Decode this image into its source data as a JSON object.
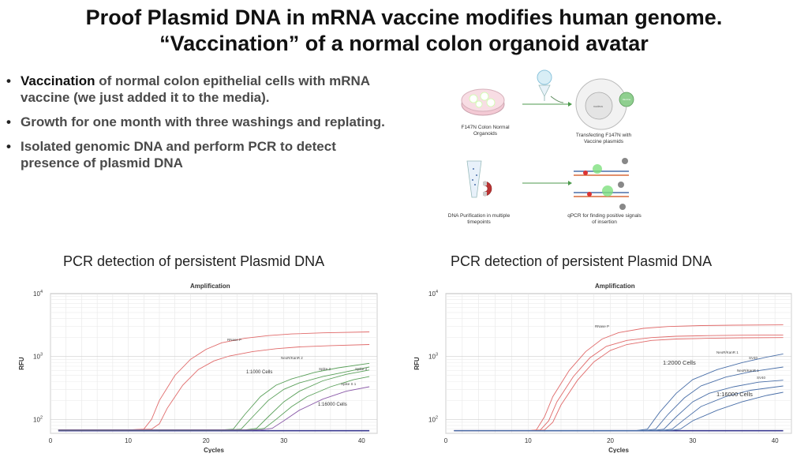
{
  "title_line1": "Proof Plasmid DNA in mRNA vaccine modifies human genome.",
  "title_line2": "“Vaccination” of a normal colon organoid avatar",
  "bullets": [
    {
      "em": "Vaccination",
      "rest": " of normal colon epithelial cells with mRNA vaccine (we just added it to the media)."
    },
    {
      "em": "",
      "rest": "Growth for one month with three washings and replating."
    },
    {
      "em": "",
      "rest": "Isolated genomic DNA and perform PCR to detect presence of plasmid DNA"
    }
  ],
  "diagram": {
    "step1": "F147N Colon Normal Organoids",
    "step2": "Transfecting F147N with Vaccine plasmids",
    "step3": "DNA Purification in multiple timepoints",
    "step4": "qPCR for finding positive signals of insertion",
    "cell_label": "Vaccine",
    "nucleus_label": "nucleus"
  },
  "colors": {
    "red": "#e06a6a",
    "green": "#5aa05a",
    "purple": "#8a5aa8",
    "blue": "#4a6fa8",
    "baseline": "#3a3a90"
  },
  "chart_data": [
    {
      "type": "line",
      "title": "PCR detection of persistent Plasmid DNA",
      "subtitle": "Amplification",
      "xlabel": "Cycles",
      "ylabel": "RFU",
      "yscale": "log",
      "xlim": [
        0,
        42
      ],
      "ylim": [
        60,
        10000
      ],
      "xticks": [
        0,
        10,
        20,
        30,
        40
      ],
      "yticks": [
        100,
        1000,
        10000
      ],
      "ytick_labels": [
        "10^2",
        "10^3",
        "10^4"
      ],
      "grid": true,
      "annotations": [
        "1:1000 Cells",
        "1:16000 Cells"
      ],
      "series": [
        {
          "name": "RNase P",
          "color": "#e06a6a",
          "x": [
            1,
            10,
            12,
            13,
            14,
            16,
            18,
            20,
            22,
            25,
            28,
            31,
            35,
            41
          ],
          "y": [
            68,
            68,
            70,
            100,
            200,
            500,
            900,
            1300,
            1650,
            1950,
            2150,
            2280,
            2380,
            2460
          ]
        },
        {
          "color": "#e06a6a",
          "x": [
            1,
            10,
            13,
            14,
            15,
            17,
            19,
            21,
            23,
            26,
            29,
            32,
            36,
            41
          ],
          "y": [
            68,
            68,
            70,
            85,
            150,
            350,
            620,
            850,
            1020,
            1200,
            1330,
            1420,
            1490,
            1550
          ]
        },
        {
          "name": "Spike 2",
          "color": "#5aa05a",
          "x": [
            1,
            22,
            23.5,
            25,
            27,
            29,
            31,
            34,
            37,
            41
          ],
          "y": [
            68,
            68,
            70,
            120,
            230,
            350,
            440,
            560,
            660,
            780
          ]
        },
        {
          "color": "#5aa05a",
          "x": [
            1,
            23,
            24.5,
            26,
            28,
            30,
            32,
            35,
            38,
            41
          ],
          "y": [
            68,
            68,
            70,
            110,
            200,
            300,
            380,
            480,
            570,
            680
          ]
        },
        {
          "name": "NeoR/KanR 2",
          "color": "#5aa05a",
          "x": [
            1,
            25,
            26.5,
            28,
            30,
            32,
            35,
            38,
            41
          ],
          "y": [
            68,
            68,
            72,
            110,
            190,
            280,
            410,
            520,
            610
          ]
        },
        {
          "name": "Spike 3",
          "color": "#5aa05a",
          "x": [
            1,
            26,
            27.5,
            29,
            31,
            33,
            36,
            39,
            41
          ],
          "y": [
            68,
            68,
            72,
            100,
            160,
            230,
            330,
            430,
            480
          ]
        },
        {
          "name": "Spike S 1",
          "color": "#8a5aa8",
          "x": [
            1,
            27,
            28.5,
            30,
            32,
            35,
            38,
            41
          ],
          "y": [
            68,
            68,
            72,
            95,
            140,
            210,
            280,
            330
          ]
        }
      ]
    },
    {
      "type": "line",
      "title": "PCR detection of persistent Plasmid DNA",
      "subtitle": "Amplification",
      "xlabel": "Cycles",
      "ylabel": "RFU",
      "yscale": "log",
      "xlim": [
        0,
        42
      ],
      "ylim": [
        60,
        10000
      ],
      "xticks": [
        0,
        10,
        20,
        30,
        40
      ],
      "yticks": [
        100,
        1000,
        10000
      ],
      "ytick_labels": [
        "10^2",
        "10^3",
        "10^4"
      ],
      "grid": true,
      "annotations": [
        "1:2000 Cells",
        "1:16000 Cells"
      ],
      "series": [
        {
          "name": "RNase P",
          "color": "#e06a6a",
          "x": [
            1,
            10,
            11,
            12,
            13,
            15,
            17,
            19,
            21,
            24,
            27,
            31,
            35,
            41
          ],
          "y": [
            66,
            66,
            68,
            110,
            230,
            600,
            1200,
            1900,
            2400,
            2800,
            3000,
            3100,
            3150,
            3180
          ]
        },
        {
          "color": "#e06a6a",
          "x": [
            1,
            10,
            11.5,
            12.5,
            13.5,
            15.5,
            17.5,
            19.5,
            22,
            25,
            28,
            32,
            36,
            41
          ],
          "y": [
            66,
            66,
            68,
            95,
            190,
            480,
            950,
            1450,
            1800,
            2000,
            2100,
            2150,
            2180,
            2200
          ]
        },
        {
          "color": "#e06a6a",
          "x": [
            1,
            11,
            12,
            13,
            14,
            16,
            18,
            20,
            22,
            25,
            28,
            32,
            36,
            41
          ],
          "y": [
            66,
            66,
            68,
            90,
            170,
            420,
            820,
            1250,
            1550,
            1800,
            1900,
            1950,
            1980,
            2000
          ]
        },
        {
          "name": "NeoR/KanR 1",
          "color": "#4a6fa8",
          "x": [
            1,
            23,
            24.5,
            26,
            28,
            30,
            33,
            36,
            39,
            41
          ],
          "y": [
            66,
            66,
            70,
            130,
            260,
            430,
            620,
            800,
            980,
            1100
          ]
        },
        {
          "name": "SV40",
          "color": "#4a6fa8",
          "x": [
            1,
            24,
            25.5,
            27,
            29,
            31,
            34,
            37,
            41
          ],
          "y": [
            66,
            66,
            70,
            120,
            220,
            340,
            470,
            570,
            680
          ]
        },
        {
          "name": "NeoR/KanR 1",
          "color": "#4a6fa8",
          "x": [
            1,
            25,
            26.5,
            28,
            30,
            32,
            35,
            38,
            41
          ],
          "y": [
            66,
            66,
            70,
            110,
            190,
            260,
            330,
            390,
            420
          ]
        },
        {
          "name": "SV40",
          "color": "#4a6fa8",
          "x": [
            1,
            26,
            27.5,
            29,
            31,
            34,
            37,
            41
          ],
          "y": [
            66,
            66,
            70,
            100,
            160,
            230,
            290,
            340
          ]
        },
        {
          "color": "#4a6fa8",
          "x": [
            1,
            27,
            28.5,
            30,
            33,
            36,
            39,
            41
          ],
          "y": [
            66,
            66,
            70,
            95,
            140,
            190,
            240,
            270
          ]
        }
      ]
    }
  ]
}
